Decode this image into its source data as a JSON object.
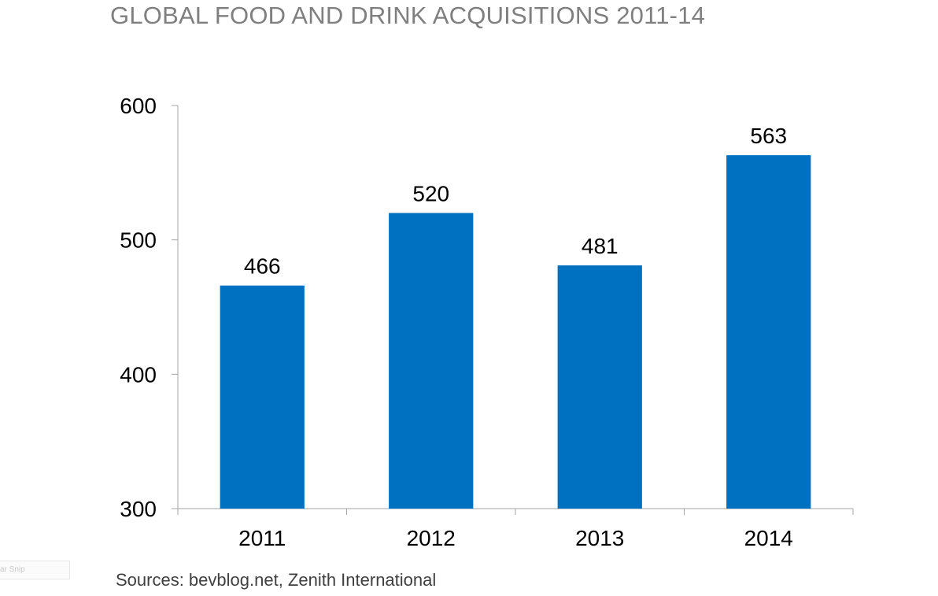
{
  "page": {
    "title": "GLOBAL FOOD AND DRINK ACQUISITIONS 2011-14",
    "source": "Sources: bevblog.net, Zenith International",
    "snip_label": "ar Snip"
  },
  "chart_data": {
    "type": "bar",
    "title": "GLOBAL FOOD AND DRINK ACQUISITIONS 2011-14",
    "categories": [
      "2011",
      "2012",
      "2013",
      "2014"
    ],
    "values": [
      466,
      520,
      481,
      563
    ],
    "data_labels": [
      "466",
      "520",
      "481",
      "563"
    ],
    "ylim": [
      300,
      600
    ],
    "yticks": [
      300,
      400,
      500,
      600
    ],
    "ytick_labels": [
      "300",
      "400",
      "500",
      "600"
    ],
    "xlabel": "",
    "ylabel": "",
    "grid": false,
    "legend": "none",
    "bar_color": "#0070C0"
  }
}
